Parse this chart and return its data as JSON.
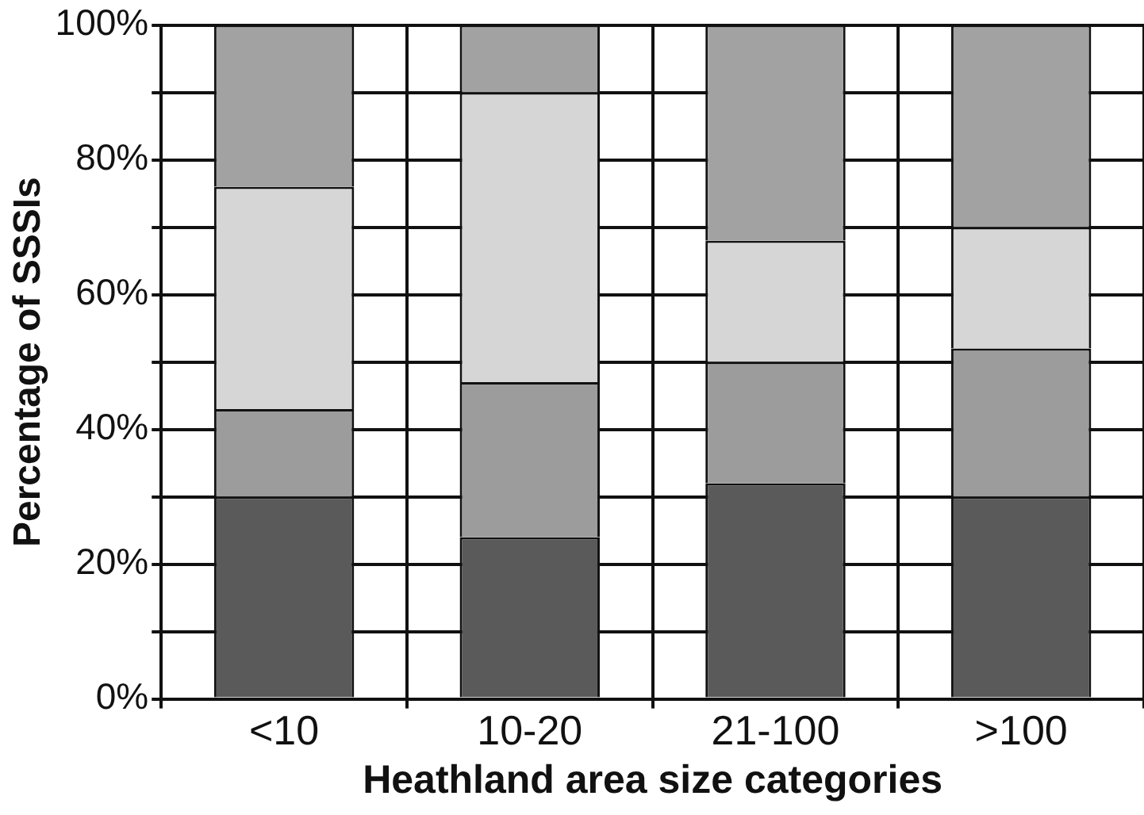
{
  "chart_data": {
    "type": "bar",
    "stacked": true,
    "xlabel": "Heathland area size categories",
    "ylabel": "Percentage of SSSIs",
    "categories": [
      "<10",
      "10-20",
      "21-100",
      ">100"
    ],
    "series": [
      {
        "color": "#5a5a5a",
        "values": [
          30,
          24,
          32,
          30
        ]
      },
      {
        "color": "#9c9c9c",
        "values": [
          13,
          23,
          18,
          22
        ]
      },
      {
        "color": "#d6d6d6",
        "values": [
          33,
          43,
          18,
          18
        ]
      },
      {
        "color": "#a2a2a2",
        "values": [
          24,
          10,
          32,
          30
        ]
      }
    ],
    "ylim": [
      0,
      100
    ],
    "yticks": [
      {
        "value": 0,
        "label": "0%"
      },
      {
        "value": 10,
        "label": null
      },
      {
        "value": 20,
        "label": "20%"
      },
      {
        "value": 30,
        "label": null
      },
      {
        "value": 40,
        "label": "40%"
      },
      {
        "value": 50,
        "label": null
      },
      {
        "value": 60,
        "label": "60%"
      },
      {
        "value": 70,
        "label": null
      },
      {
        "value": 80,
        "label": "80%"
      },
      {
        "value": 90,
        "label": null
      },
      {
        "value": 100,
        "label": "100%"
      }
    ],
    "grid": true
  }
}
